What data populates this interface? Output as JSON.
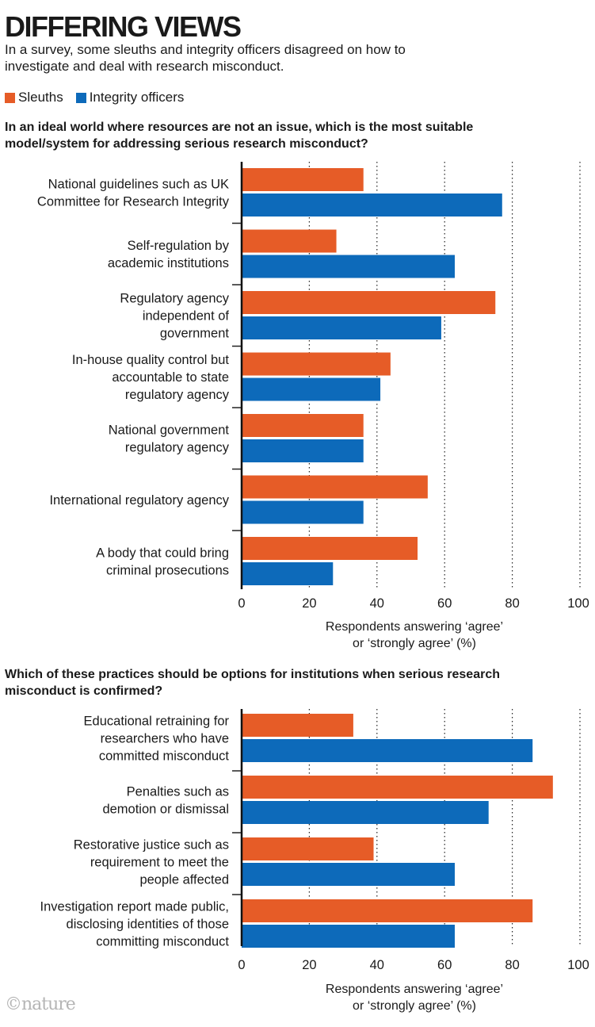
{
  "header": {
    "title": "DIFFERING VIEWS",
    "subtitle": "In a survey, some sleuths and integrity officers disagreed on how to investigate and deal with research misconduct."
  },
  "legend": [
    {
      "name": "Sleuths",
      "color": "#e65c27"
    },
    {
      "name": "Integrity officers",
      "color": "#0d6aba"
    }
  ],
  "footer": {
    "brand": "©nature"
  },
  "chart_data": [
    {
      "type": "bar",
      "orientation": "horizontal",
      "title": "In an ideal world where resources are not an issue, which is the most suitable model/system for addressing serious research misconduct?",
      "categories": [
        "National guidelines such as UK\nCommittee for Research Integrity",
        "Self-regulation by\nacademic institutions",
        "Regulatory agency\nindependent of\ngovernment",
        "In-house quality control but\naccountable to state\nregulatory agency",
        "National government\nregulatory agency",
        "International regulatory agency",
        "A body that could bring\ncriminal prosecutions"
      ],
      "series": [
        {
          "name": "Sleuths",
          "values": [
            36,
            28,
            75,
            44,
            36,
            55,
            52
          ]
        },
        {
          "name": "Integrity officers",
          "values": [
            77,
            63,
            59,
            41,
            36,
            36,
            27
          ]
        }
      ],
      "xlabel": "Respondents answering ‘agree’\nor ‘strongly agree’ (%)",
      "xlim": [
        0,
        100
      ],
      "xticks": [
        0,
        20,
        40,
        60,
        80,
        100
      ],
      "grid": "dotted vertical"
    },
    {
      "type": "bar",
      "orientation": "horizontal",
      "title": "Which of these practices should be options for institutions when serious research misconduct is confirmed?",
      "categories": [
        "Educational retraining for\nresearchers who have\ncommitted misconduct",
        "Penalties such as\ndemotion or dismissal",
        "Restorative justice such as\nrequirement to meet the\npeople affected",
        "Investigation report made public,\ndisclosing identities of those\ncommitting misconduct"
      ],
      "series": [
        {
          "name": "Sleuths",
          "values": [
            33,
            92,
            39,
            86
          ]
        },
        {
          "name": "Integrity officers",
          "values": [
            86,
            73,
            63,
            63
          ]
        }
      ],
      "xlabel": "Respondents answering ‘agree’\nor ‘strongly agree’ (%)",
      "xlim": [
        0,
        100
      ],
      "xticks": [
        0,
        20,
        40,
        60,
        80,
        100
      ],
      "grid": "dotted vertical"
    }
  ]
}
